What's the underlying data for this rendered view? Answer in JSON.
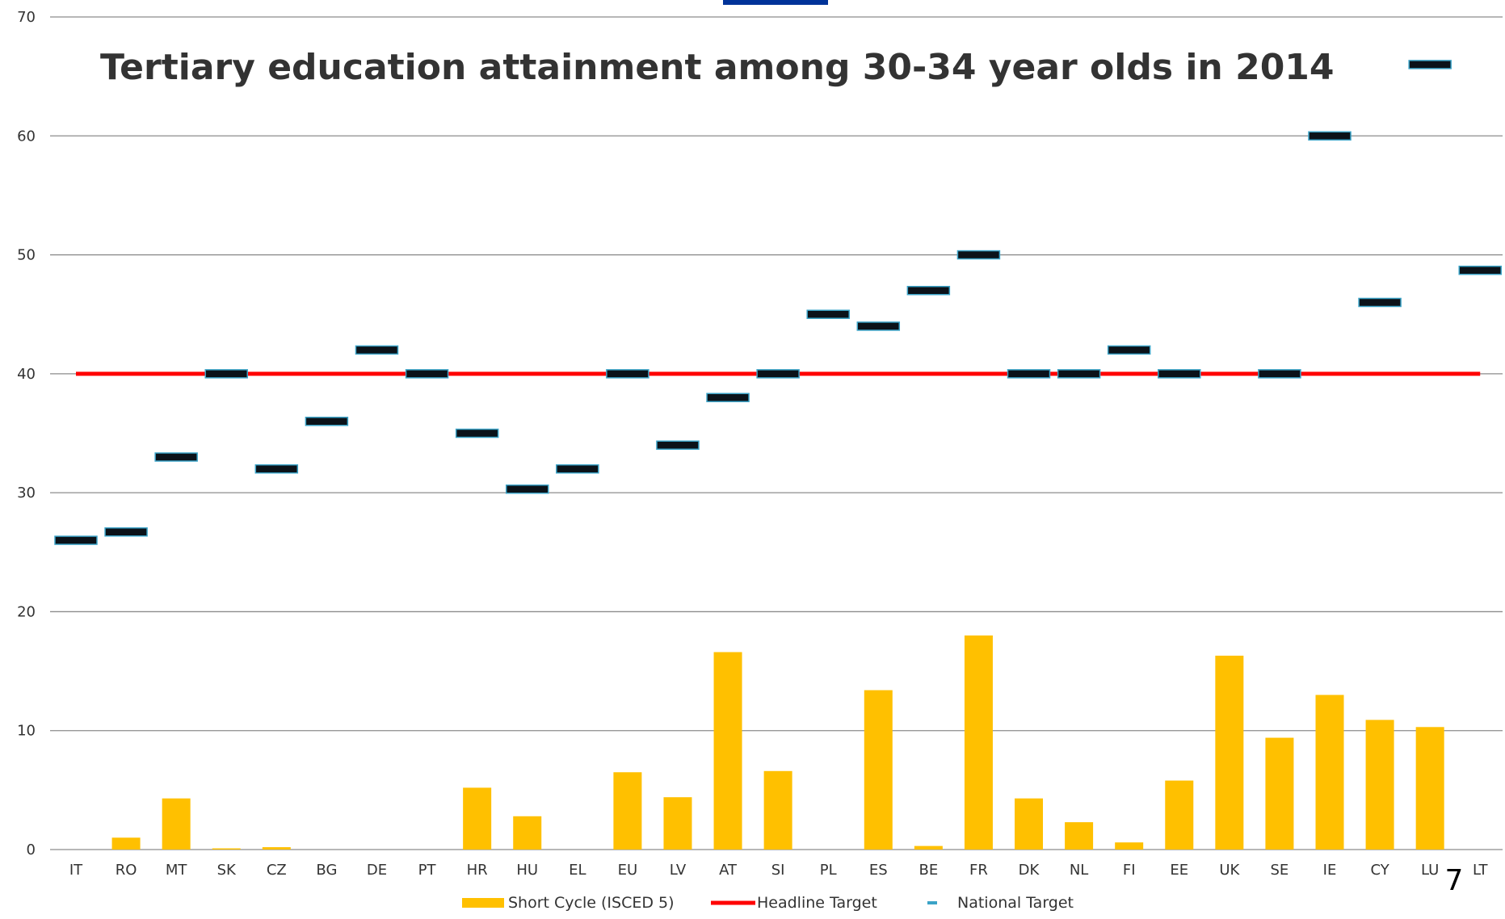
{
  "page_number": "7",
  "colors": {
    "bar": "#FFC000",
    "headline": "#FF0000",
    "national_fill": "#0B1219",
    "national_stroke": "#3BA3C7",
    "grid": "#8C8C8C",
    "top_mark": "#003399"
  },
  "chart_data": {
    "type": "bar",
    "title": "Tertiary education attainment among 30-34 year olds in 2014",
    "xlabel": "",
    "ylabel": "",
    "ylim": [
      0,
      70
    ],
    "yticks": [
      0,
      10,
      20,
      30,
      40,
      50,
      60,
      70
    ],
    "ytick_labels": [
      "0",
      "10",
      "20",
      "30",
      "40",
      "50",
      "60",
      "70"
    ],
    "grid": true,
    "legend_position": "bottom",
    "categories": [
      "IT",
      "RO",
      "MT",
      "SK",
      "CZ",
      "BG",
      "DE",
      "PT",
      "HR",
      "HU",
      "EL",
      "EU",
      "LV",
      "AT",
      "SI",
      "PL",
      "ES",
      "BE",
      "FR",
      "DK",
      "NL",
      "FI",
      "EE",
      "UK",
      "SE",
      "IE",
      "CY",
      "LU",
      "LT"
    ],
    "series": [
      {
        "name": "Short Cycle (ISCED 5)",
        "type": "bar",
        "values": [
          0,
          1.0,
          4.3,
          0.1,
          0.2,
          0,
          0,
          0,
          5.2,
          2.8,
          0,
          6.5,
          4.4,
          16.6,
          6.6,
          0,
          13.4,
          0.3,
          18.0,
          4.3,
          2.3,
          0.6,
          5.8,
          16.3,
          9.4,
          13.0,
          10.9,
          10.3,
          0
        ]
      },
      {
        "name": "Headline Target",
        "type": "line",
        "values": [
          40,
          40,
          40,
          40,
          40,
          40,
          40,
          40,
          40,
          40,
          40,
          40,
          40,
          40,
          40,
          40,
          40,
          40,
          40,
          40,
          40,
          40,
          40,
          40,
          40,
          40,
          40,
          40,
          40
        ]
      },
      {
        "name": "National Target",
        "type": "marker",
        "values": [
          26,
          26.7,
          33,
          40,
          32,
          36,
          42,
          40,
          35,
          30.3,
          32,
          40,
          34,
          38,
          40,
          45,
          44,
          47,
          50,
          40,
          40,
          42,
          40,
          null,
          40,
          60,
          46,
          66,
          48.7
        ]
      }
    ]
  }
}
